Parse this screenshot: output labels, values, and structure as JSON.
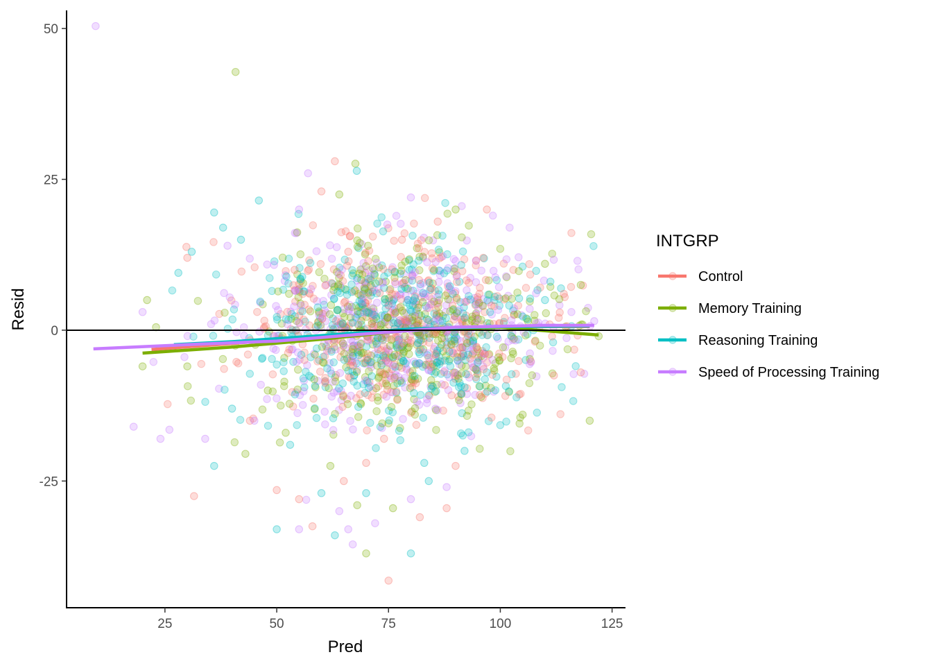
{
  "chart_data": {
    "type": "scatter",
    "title": "",
    "xlabel": "Pred",
    "ylabel": "Resid",
    "xlim": [
      3,
      128
    ],
    "ylim": [
      -46,
      53
    ],
    "x_ticks": [
      25,
      50,
      75,
      100,
      125
    ],
    "x_tick_labels": [
      "25",
      "50",
      "75",
      "100",
      "125"
    ],
    "y_ticks": [
      -25,
      0,
      25,
      50
    ],
    "y_tick_labels": [
      "-25",
      "0",
      "25",
      "50"
    ],
    "grid": false,
    "reference_line": {
      "y": 0,
      "color": "#000000"
    },
    "point_alpha": 0.25,
    "legend": {
      "title": "INTGRP",
      "position": "right"
    },
    "series": [
      {
        "name": "Control",
        "color": "#F8766D",
        "trend": {
          "x": [
            22,
            40,
            60,
            80,
            100,
            120
          ],
          "y": [
            -3.2,
            -2.2,
            -1.0,
            0.2,
            0.6,
            0.6
          ]
        },
        "points": [
          [
            29.8,
            13.8
          ],
          [
            31.5,
            -27.5
          ],
          [
            60,
            23
          ],
          [
            63,
            28
          ],
          [
            97,
            20
          ],
          [
            75,
            -41.5
          ],
          [
            88,
            -29.5
          ],
          [
            82,
            -31
          ],
          [
            70,
            -22
          ],
          [
            50,
            -26.5
          ],
          [
            55,
            -28
          ],
          [
            58,
            -32.5
          ],
          [
            65,
            -25
          ],
          [
            74,
            -18
          ],
          [
            90,
            -22.5
          ],
          [
            112,
            -7.5
          ],
          [
            118,
            -7
          ],
          [
            30,
            12
          ],
          [
            44,
            -15
          ],
          [
            86,
            18
          ],
          [
            78,
            15
          ],
          [
            66,
            13
          ],
          [
            54,
            10
          ]
        ]
      },
      {
        "name": "Memory Training",
        "color": "#7CAE00",
        "trend": {
          "x": [
            20,
            40,
            60,
            80,
            100,
            122
          ],
          "y": [
            -3.8,
            -2.8,
            -1.5,
            0.0,
            0.5,
            -0.8
          ]
        },
        "points": [
          [
            40.8,
            42.8
          ],
          [
            67.6,
            27.6
          ],
          [
            20,
            -6
          ],
          [
            23,
            0.5
          ],
          [
            21,
            5
          ],
          [
            120,
            -15
          ],
          [
            122,
            -1
          ],
          [
            118,
            7.5
          ],
          [
            70,
            -37
          ],
          [
            68,
            -29
          ],
          [
            76,
            -29.5
          ],
          [
            62,
            -22.5
          ],
          [
            52,
            -17
          ],
          [
            43,
            -20.5
          ],
          [
            90,
            20
          ],
          [
            64,
            22.5
          ],
          [
            48,
            -10
          ],
          [
            105,
            -14
          ],
          [
            110,
            11
          ],
          [
            30,
            -6
          ]
        ]
      },
      {
        "name": "Reasoning Training",
        "color": "#00BFC4",
        "trend": {
          "x": [
            27,
            40,
            60,
            80,
            100,
            120
          ],
          "y": [
            -2.4,
            -1.9,
            -0.9,
            0.2,
            0.6,
            0.7
          ]
        },
        "points": [
          [
            67.9,
            26.4
          ],
          [
            80,
            -37
          ],
          [
            63,
            -34
          ],
          [
            50,
            -33
          ],
          [
            36,
            -22.5
          ],
          [
            28,
            9.5
          ],
          [
            36,
            19.5
          ],
          [
            46,
            21.5
          ],
          [
            38,
            17
          ],
          [
            42,
            15
          ],
          [
            31,
            13
          ],
          [
            92,
            -20
          ],
          [
            110,
            5
          ],
          [
            70,
            -27
          ],
          [
            83,
            -22
          ],
          [
            53,
            -19
          ],
          [
            40,
            -13
          ],
          [
            60,
            -27
          ],
          [
            84,
            -25
          ]
        ]
      },
      {
        "name": "Speed of Processing Training",
        "color": "#C77CFF",
        "trend": {
          "x": [
            9,
            30,
            50,
            70,
            90,
            110,
            121
          ],
          "y": [
            -3.1,
            -2.4,
            -1.8,
            -0.6,
            0.5,
            0.8,
            0.8
          ]
        },
        "points": [
          [
            9.5,
            50.4
          ],
          [
            121,
            1.5
          ],
          [
            18,
            -16
          ],
          [
            24,
            -18
          ],
          [
            26,
            -16.5
          ],
          [
            20,
            3
          ],
          [
            57,
            26
          ],
          [
            67,
            -35.5
          ],
          [
            55,
            -33
          ],
          [
            64,
            -30
          ],
          [
            80,
            -28
          ],
          [
            80,
            22
          ],
          [
            55,
            20
          ],
          [
            39,
            14
          ],
          [
            34,
            -18
          ],
          [
            45,
            -15
          ],
          [
            72,
            -32
          ],
          [
            88,
            -26
          ],
          [
            66,
            -33
          ]
        ]
      }
    ]
  }
}
